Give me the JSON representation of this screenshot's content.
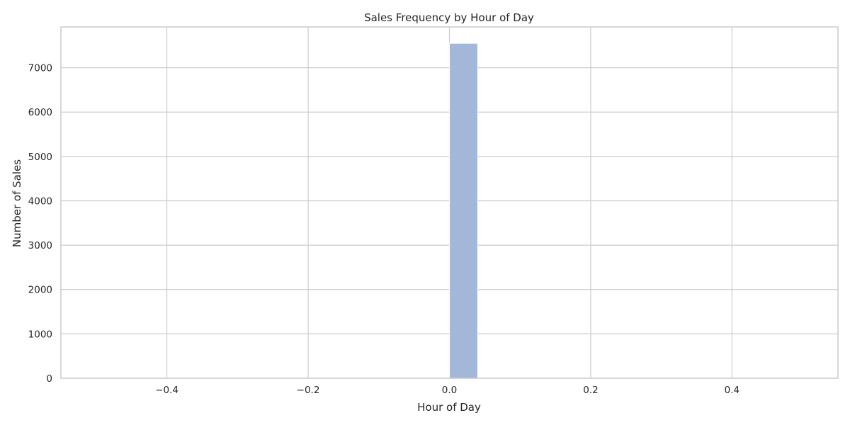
{
  "chart_data": {
    "type": "bar",
    "title": "Sales Frequency by Hour of Day",
    "xlabel": "Hour of Day",
    "ylabel": "Number of Sales",
    "xlim": [
      -0.55,
      0.55
    ],
    "ylim": [
      0,
      7920
    ],
    "xticks": [
      -0.4,
      -0.2,
      0.0,
      0.2,
      0.4
    ],
    "xtick_labels": [
      "−0.4",
      "−0.2",
      "0.0",
      "0.2",
      "0.4"
    ],
    "yticks": [
      0,
      1000,
      2000,
      3000,
      4000,
      5000,
      6000,
      7000
    ],
    "ytick_labels": [
      "0",
      "1000",
      "2000",
      "3000",
      "4000",
      "5000",
      "6000",
      "7000"
    ],
    "grid": true,
    "bar_color": "#a3b7d8",
    "bars": [
      {
        "x_start": 0.0,
        "x_end": 0.04,
        "value": 7550
      }
    ]
  }
}
